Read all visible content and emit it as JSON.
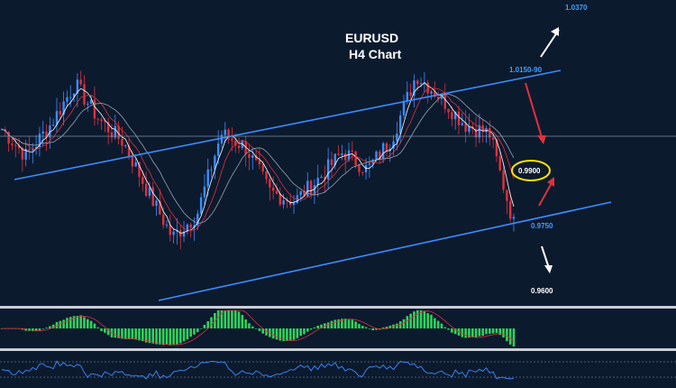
{
  "chart_data": {
    "type": "candlestick",
    "title": "EURUSD",
    "subtitle": "H4 Chart",
    "levels": [
      {
        "label": "1.0370",
        "value": 1.037,
        "color": "#3fa0ff"
      },
      {
        "label": "1.0150-90",
        "value": 1.017,
        "color": "#3fa0ff"
      },
      {
        "label": "0.9900",
        "value": 0.99,
        "color": "#ffffff",
        "highlighted": true
      },
      {
        "label": "0.9750",
        "value": 0.975,
        "color": "#3fa0ff"
      },
      {
        "label": "0.9600",
        "value": 0.96,
        "color": "#ffffff"
      }
    ],
    "price_path": [
      0.997,
      0.991,
      0.998,
      1.007,
      0.999,
      0.994,
      0.983,
      0.973,
      0.978,
      0.996,
      0.993,
      0.983,
      0.981,
      0.986,
      0.992,
      0.988,
      0.995,
      1.009,
      1.004,
      0.998,
      0.996,
      0.976
    ],
    "channel": "ascending",
    "indicators": [
      "MACD histogram",
      "RSI"
    ],
    "colors": {
      "background": "#0c1a2e",
      "channel": "#3a8dff",
      "bull": "#3a8dff",
      "bear": "#e0313b",
      "highlight": "#ffe400",
      "histogram": "#2fd35b"
    },
    "grid": false
  }
}
